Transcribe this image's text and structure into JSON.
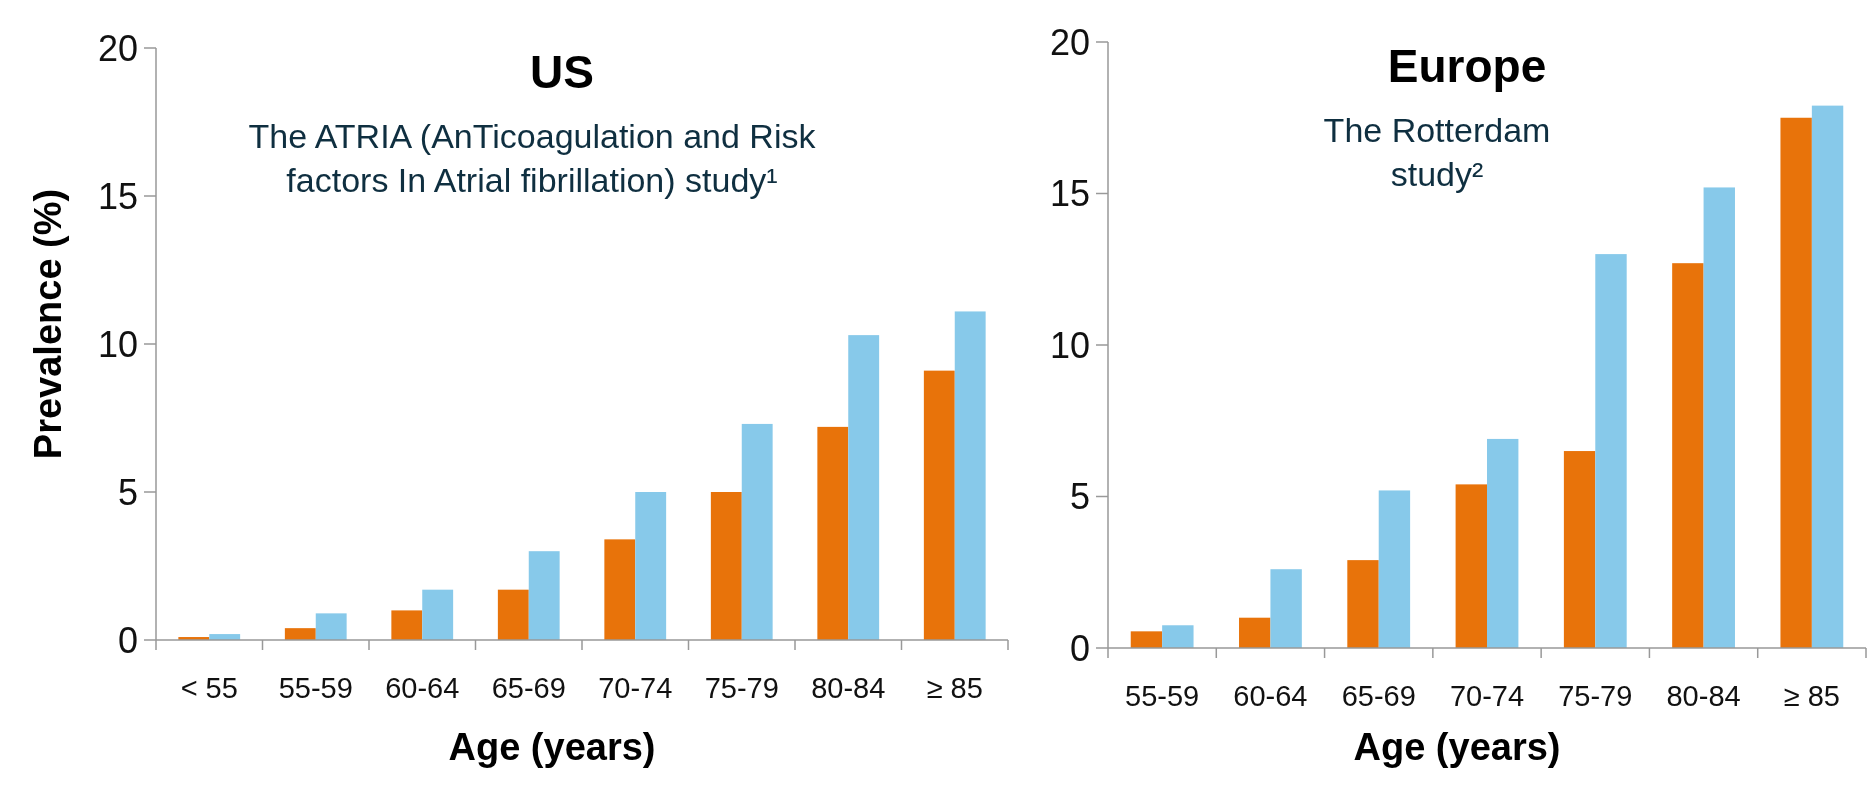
{
  "chart_data": [
    {
      "type": "bar",
      "title": "US",
      "subtitle": "The ATRIA (AnTicoagulation and Risk\nfactors In Atrial fibrillation) study¹",
      "xlabel": "Age (years)",
      "ylabel": "Prevalence (%)",
      "categories": [
        "< 55",
        "55-59",
        "60-64",
        "65-69",
        "70-74",
        "75-79",
        "80-84",
        "≥ 85"
      ],
      "series": [
        {
          "color": "#e8730a",
          "values": [
            0.1,
            0.4,
            1.0,
            1.7,
            3.4,
            5.0,
            7.2,
            9.1
          ]
        },
        {
          "color": "#87c9ea",
          "values": [
            0.2,
            0.9,
            1.7,
            3.0,
            5.0,
            7.3,
            10.3,
            11.1
          ]
        }
      ],
      "ylim": [
        0,
        20
      ],
      "yticks": [
        0,
        5,
        10,
        15,
        20
      ],
      "grid": false
    },
    {
      "type": "bar",
      "title": "Europe",
      "subtitle": "The Rotterdam\nstudy²",
      "xlabel": "Age (years)",
      "categories": [
        "55-59",
        "60-64",
        "65-69",
        "70-74",
        "75-79",
        "80-84",
        "≥ 85"
      ],
      "series": [
        {
          "color": "#e8730a",
          "values": [
            0.55,
            1.0,
            2.9,
            5.4,
            6.5,
            12.7,
            17.5
          ]
        },
        {
          "color": "#87c9ea",
          "values": [
            0.75,
            2.6,
            5.2,
            6.9,
            13.0,
            15.2,
            17.9
          ]
        }
      ],
      "ylim": [
        0,
        20
      ],
      "yticks": [
        0,
        5,
        10,
        15,
        20
      ],
      "grid": false
    }
  ]
}
